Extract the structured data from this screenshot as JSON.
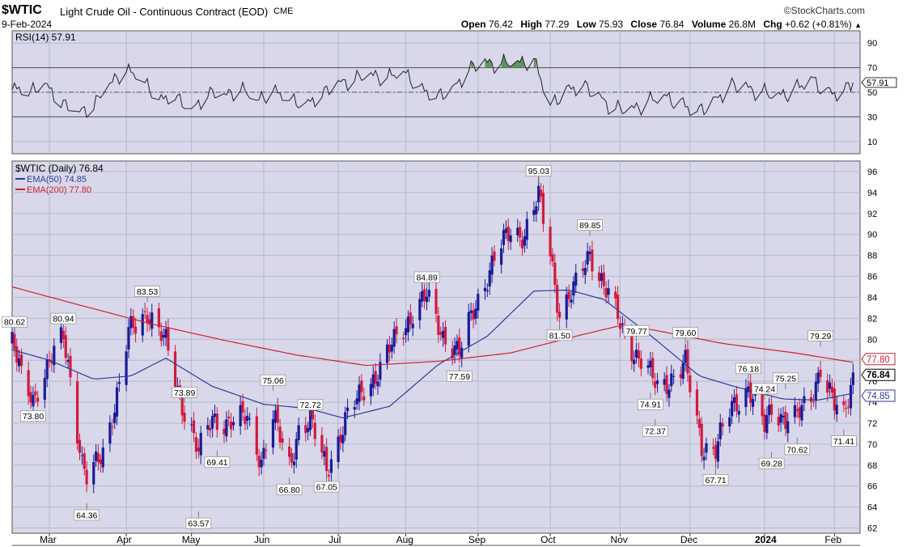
{
  "header": {
    "symbol": "$WTIC",
    "description": "Light Crude Oil - Continuous Contract (EOD)",
    "exchange": "CME",
    "date": "9-Feb-2024",
    "brand": "©StockCharts.com",
    "open_label": "Open",
    "open": "76.42",
    "high_label": "High",
    "high": "77.29",
    "low_label": "Low",
    "low": "75.93",
    "close_label": "Close",
    "close": "76.84",
    "volume_label": "Volume",
    "volume": "26.8M",
    "chg_label": "Chg",
    "chg": "+0.62 (+0.81%)",
    "chg_arrow": "▲"
  },
  "colors": {
    "panel_bg": "#d8d8ea",
    "grid": "#b8b8cc",
    "up_candle": "#1a1a9a",
    "down_candle": "#d11a3e",
    "ema50": "#2d3a9a",
    "ema200": "#cc2233",
    "rsi_line": "#222222",
    "rsi_fill": "#4a8a4a"
  },
  "chart_data": [
    {
      "type": "line",
      "name": "rsi-panel",
      "legend": "RSI(14) 57.91",
      "yticks": [
        10,
        30,
        50,
        70,
        90
      ],
      "ylim": [
        0,
        100
      ],
      "reference_lines": [
        30,
        50,
        70
      ],
      "last_value_label": "57.91",
      "x": [
        "2023-02-13",
        "2023-02-20",
        "2023-02-27",
        "2023-03-06",
        "2023-03-13",
        "2023-03-20",
        "2023-03-27",
        "2023-04-03",
        "2023-04-10",
        "2023-04-17",
        "2023-04-24",
        "2023-05-01",
        "2023-05-08",
        "2023-05-15",
        "2023-05-22",
        "2023-05-29",
        "2023-06-05",
        "2023-06-12",
        "2023-06-19",
        "2023-06-26",
        "2023-07-03",
        "2023-07-10",
        "2023-07-17",
        "2023-07-24",
        "2023-07-31",
        "2023-08-07",
        "2023-08-14",
        "2023-08-21",
        "2023-08-28",
        "2023-09-04",
        "2023-09-11",
        "2023-09-18",
        "2023-09-25",
        "2023-10-02",
        "2023-10-09",
        "2023-10-16",
        "2023-10-23",
        "2023-10-30",
        "2023-11-06",
        "2023-11-13",
        "2023-11-20",
        "2023-11-27",
        "2023-12-04",
        "2023-12-11",
        "2023-12-18",
        "2023-12-25",
        "2024-01-01",
        "2024-01-08",
        "2024-01-15",
        "2024-01-22",
        "2024-01-29",
        "2024-02-05",
        "2024-02-09"
      ],
      "values": [
        52,
        48,
        55,
        40,
        31,
        38,
        55,
        67,
        58,
        42,
        45,
        33,
        48,
        45,
        52,
        41,
        50,
        43,
        38,
        47,
        55,
        60,
        62,
        61,
        65,
        52,
        45,
        50,
        68,
        72,
        73,
        72,
        75,
        38,
        50,
        55,
        44,
        36,
        34,
        42,
        45,
        40,
        33,
        40,
        55,
        52,
        50,
        45,
        52,
        60,
        48,
        50,
        57.91
      ]
    },
    {
      "type": "bar",
      "name": "price-panel",
      "legend": "$WTIC (Daily) 76.84",
      "yticks": [
        62,
        64,
        66,
        68,
        70,
        72,
        74,
        76,
        78,
        80,
        82,
        84,
        86,
        88,
        90,
        92,
        94,
        96
      ],
      "ylim": [
        61.5,
        97
      ],
      "x_month_labels": [
        "Mar",
        "Apr",
        "May",
        "Jun",
        "Jul",
        "Aug",
        "Sep",
        "Oct",
        "Nov",
        "Dec",
        "2024",
        "Feb"
      ],
      "x_month_dates": [
        "2023-03-01",
        "2023-04-03",
        "2023-05-01",
        "2023-06-01",
        "2023-07-03",
        "2023-08-01",
        "2023-09-01",
        "2023-10-02",
        "2023-11-01",
        "2023-12-01",
        "2024-01-02",
        "2024-02-01"
      ],
      "series": [
        {
          "name": "EMA(50) 74.85",
          "x": [
            "2023-02-13",
            "2023-03-01",
            "2023-03-20",
            "2023-04-05",
            "2023-04-20",
            "2023-05-10",
            "2023-06-01",
            "2023-06-20",
            "2023-07-05",
            "2023-07-25",
            "2023-08-15",
            "2023-09-05",
            "2023-09-25",
            "2023-10-10",
            "2023-10-25",
            "2023-11-15",
            "2023-12-05",
            "2023-12-20",
            "2024-01-10",
            "2024-01-25",
            "2024-02-09"
          ],
          "values": [
            79.0,
            78.0,
            76.2,
            76.5,
            78.2,
            75.5,
            73.8,
            73.4,
            72.5,
            73.6,
            77.6,
            80.3,
            84.6,
            84.7,
            83.8,
            80.2,
            76.5,
            75.5,
            74.3,
            74.2,
            74.85
          ]
        },
        {
          "name": "EMA(200) 77.80",
          "x": [
            "2023-02-13",
            "2023-03-15",
            "2023-04-15",
            "2023-05-15",
            "2023-06-15",
            "2023-07-15",
            "2023-08-15",
            "2023-09-15",
            "2023-10-15",
            "2023-11-01",
            "2023-11-15",
            "2023-12-15",
            "2024-01-15",
            "2024-02-09"
          ],
          "values": [
            85.0,
            83.2,
            81.4,
            79.9,
            78.5,
            77.5,
            77.9,
            78.7,
            80.4,
            81.3,
            80.9,
            79.6,
            78.7,
            77.8
          ]
        }
      ],
      "annotations": [
        {
          "date": "2023-02-14",
          "value": 80.62,
          "label": "80.62"
        },
        {
          "date": "2023-02-22",
          "value": 73.8,
          "label": "73.80"
        },
        {
          "date": "2023-03-07",
          "value": 80.94,
          "label": "80.94"
        },
        {
          "date": "2023-03-17",
          "value": 64.36,
          "label": "64.36"
        },
        {
          "date": "2023-04-12",
          "value": 83.53,
          "label": "83.53"
        },
        {
          "date": "2023-04-28",
          "value": 73.89,
          "label": "73.89"
        },
        {
          "date": "2023-05-04",
          "value": 63.57,
          "label": "63.57"
        },
        {
          "date": "2023-05-12",
          "value": 69.41,
          "label": "69.41"
        },
        {
          "date": "2023-06-05",
          "value": 75.06,
          "label": "75.06"
        },
        {
          "date": "2023-06-12",
          "value": 66.8,
          "label": "66.80"
        },
        {
          "date": "2023-06-21",
          "value": 72.72,
          "label": "72.72"
        },
        {
          "date": "2023-06-28",
          "value": 67.05,
          "label": "67.05"
        },
        {
          "date": "2023-08-10",
          "value": 84.89,
          "label": "84.89"
        },
        {
          "date": "2023-08-24",
          "value": 77.59,
          "label": "77.59"
        },
        {
          "date": "2023-09-27",
          "value": 95.03,
          "label": "95.03"
        },
        {
          "date": "2023-10-06",
          "value": 81.5,
          "label": "81.50"
        },
        {
          "date": "2023-10-19",
          "value": 89.85,
          "label": "89.85"
        },
        {
          "date": "2023-11-08",
          "value": 79.77,
          "label": "79.77"
        },
        {
          "date": "2023-11-14",
          "value": 74.91,
          "label": "74.91"
        },
        {
          "date": "2023-11-16",
          "value": 72.37,
          "label": "72.37"
        },
        {
          "date": "2023-11-29",
          "value": 79.6,
          "label": "79.60"
        },
        {
          "date": "2023-12-12",
          "value": 67.71,
          "label": "67.71"
        },
        {
          "date": "2023-12-26",
          "value": 76.18,
          "label": "76.18"
        },
        {
          "date": "2024-01-02",
          "value": 74.24,
          "label": "74.24"
        },
        {
          "date": "2024-01-05",
          "value": 69.28,
          "label": "69.28"
        },
        {
          "date": "2024-01-11",
          "value": 75.25,
          "label": "75.25"
        },
        {
          "date": "2024-01-16",
          "value": 70.62,
          "label": "70.62"
        },
        {
          "date": "2024-01-26",
          "value": 79.29,
          "label": "79.29"
        },
        {
          "date": "2024-02-05",
          "value": 71.41,
          "label": "71.41"
        }
      ],
      "price_path": {
        "dates": [
          "2023-02-13",
          "2023-02-17",
          "2023-02-22",
          "2023-02-28",
          "2023-03-07",
          "2023-03-10",
          "2023-03-15",
          "2023-03-17",
          "2023-03-20",
          "2023-03-24",
          "2023-03-31",
          "2023-04-04",
          "2023-04-12",
          "2023-04-20",
          "2023-04-26",
          "2023-05-01",
          "2023-05-04",
          "2023-05-10",
          "2023-05-19",
          "2023-05-25",
          "2023-05-31",
          "2023-06-05",
          "2023-06-12",
          "2023-06-16",
          "2023-06-21",
          "2023-06-28",
          "2023-07-06",
          "2023-07-14",
          "2023-07-21",
          "2023-07-28",
          "2023-08-04",
          "2023-08-10",
          "2023-08-17",
          "2023-08-24",
          "2023-08-31",
          "2023-09-08",
          "2023-09-15",
          "2023-09-21",
          "2023-09-27",
          "2023-10-02",
          "2023-10-06",
          "2023-10-12",
          "2023-10-19",
          "2023-10-26",
          "2023-11-03",
          "2023-11-08",
          "2023-11-14",
          "2023-11-17",
          "2023-11-24",
          "2023-11-29",
          "2023-12-06",
          "2023-12-12",
          "2023-12-19",
          "2023-12-26",
          "2024-01-02",
          "2024-01-05",
          "2024-01-11",
          "2024-01-16",
          "2024-01-22",
          "2024-01-26",
          "2024-02-01",
          "2024-02-05",
          "2024-02-09"
        ],
        "values": [
          79.5,
          76.5,
          74.5,
          77.0,
          80.5,
          76.5,
          68.0,
          66.5,
          67.5,
          69.5,
          75.5,
          80.5,
          82.8,
          79.5,
          74.5,
          71.5,
          69.0,
          72.5,
          72.0,
          72.5,
          68.5,
          72.5,
          68.0,
          71.5,
          72.0,
          67.8,
          72.0,
          75.5,
          77.0,
          80.3,
          82.5,
          84.0,
          80.5,
          78.5,
          83.5,
          87.5,
          90.5,
          90.0,
          93.5,
          88.5,
          82.5,
          84.5,
          88.5,
          84.5,
          80.5,
          78.5,
          76.5,
          75.5,
          76.5,
          77.5,
          70.0,
          69.5,
          73.5,
          75.5,
          71.5,
          73.5,
          72.5,
          72.5,
          74.5,
          77.5,
          73.5,
          72.5,
          76.84
        ]
      },
      "last_value_labels": {
        "ema200": "77.80",
        "close": "76.84",
        "ema50": "74.85"
      }
    }
  ]
}
